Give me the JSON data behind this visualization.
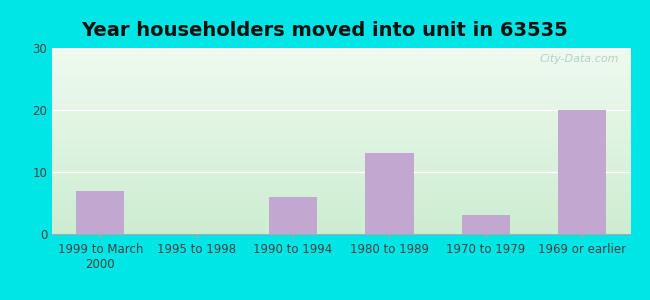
{
  "title": "Year householders moved into unit in 63535",
  "categories": [
    "1999 to March\n2000",
    "1995 to 1998",
    "1990 to 1994",
    "1980 to 1989",
    "1970 to 1979",
    "1969 or earlier"
  ],
  "values": [
    7,
    0,
    6,
    13,
    3,
    20
  ],
  "bar_color": "#c2a8d0",
  "ylim": [
    0,
    30
  ],
  "yticks": [
    0,
    10,
    20,
    30
  ],
  "bg_color_top_left": "#c8e8c8",
  "bg_color_top_right": "#e8f5e8",
  "bg_color_bottom": "#d8f0d8",
  "outer_background": "#00e5e5",
  "grid_color": "#ffffff",
  "title_fontsize": 14,
  "tick_fontsize": 8.5,
  "watermark": "City-Data.com"
}
